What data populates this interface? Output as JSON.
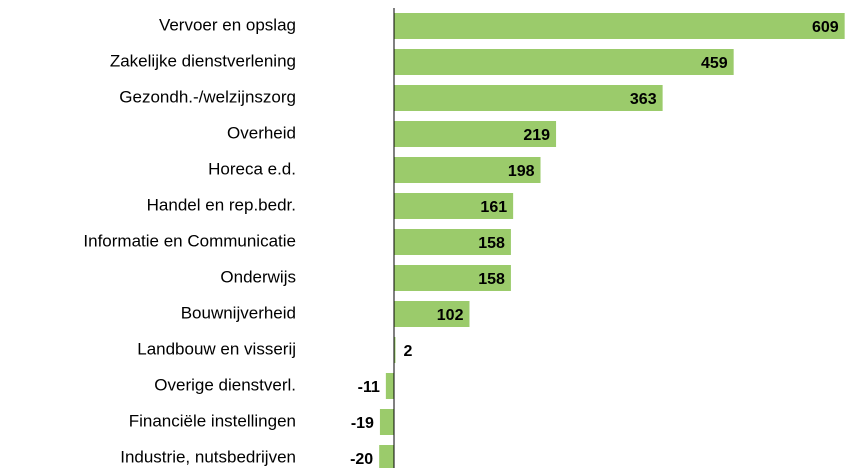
{
  "chart_data": {
    "type": "bar",
    "orientation": "horizontal",
    "categories": [
      "Vervoer en opslag",
      "Zakelijke dienstverlening",
      "Gezondh.-/welzijnszorg",
      "Overheid",
      "Horeca e.d.",
      "Handel en rep.bedr.",
      "Informatie en Communicatie",
      "Onderwijs",
      "Bouwnijverheid",
      "Landbouw en visserij",
      "Overige dienstverl.",
      "Financiële instellingen",
      "Industrie, nutsbedrijven"
    ],
    "values": [
      609,
      459,
      363,
      219,
      198,
      161,
      158,
      158,
      102,
      2,
      -11,
      -19,
      -20
    ],
    "color": "#9bcb6b",
    "xlim": [
      -20,
      610
    ]
  }
}
